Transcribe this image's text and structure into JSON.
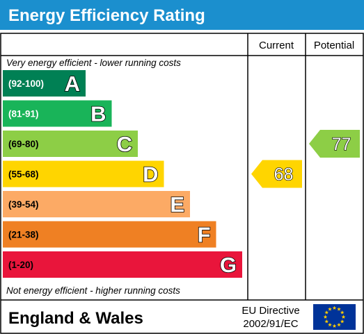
{
  "header": {
    "title": "Energy Efficiency Rating",
    "color": "#1b8fce"
  },
  "columns": {
    "current": "Current",
    "potential": "Potential"
  },
  "notes": {
    "top": "Very energy efficient - lower running costs",
    "bottom": "Not energy efficient - higher running costs"
  },
  "footer": {
    "region": "England & Wales",
    "directive_line1": "EU Directive",
    "directive_line2": "2002/91/EC",
    "flag_icon": "eu-flag-icon",
    "flag_color": "#003399",
    "star_color": "#ffcc00"
  },
  "chart_data": {
    "type": "bar",
    "title": "Energy Efficiency Rating",
    "bands": [
      {
        "letter": "A",
        "range": "(92-100)",
        "min": 92,
        "max": 100,
        "color": "#008054",
        "range_text_color": "#ffffff"
      },
      {
        "letter": "B",
        "range": "(81-91)",
        "min": 81,
        "max": 91,
        "color": "#19b459",
        "range_text_color": "#ffffff"
      },
      {
        "letter": "C",
        "range": "(69-80)",
        "min": 69,
        "max": 80,
        "color": "#8dce46",
        "range_text_color": "#000000"
      },
      {
        "letter": "D",
        "range": "(55-68)",
        "min": 55,
        "max": 68,
        "color": "#ffd500",
        "range_text_color": "#000000"
      },
      {
        "letter": "E",
        "range": "(39-54)",
        "min": 39,
        "max": 54,
        "color": "#fcaa65",
        "range_text_color": "#000000"
      },
      {
        "letter": "F",
        "range": "(21-38)",
        "min": 21,
        "max": 38,
        "color": "#ef8023",
        "range_text_color": "#000000"
      },
      {
        "letter": "G",
        "range": "(1-20)",
        "min": 1,
        "max": 20,
        "color": "#e9153b",
        "range_text_color": "#000000"
      }
    ],
    "current": {
      "value": 68,
      "band": "D",
      "color": "#ffd500"
    },
    "potential": {
      "value": 77,
      "band": "C",
      "color": "#8dce46"
    }
  }
}
